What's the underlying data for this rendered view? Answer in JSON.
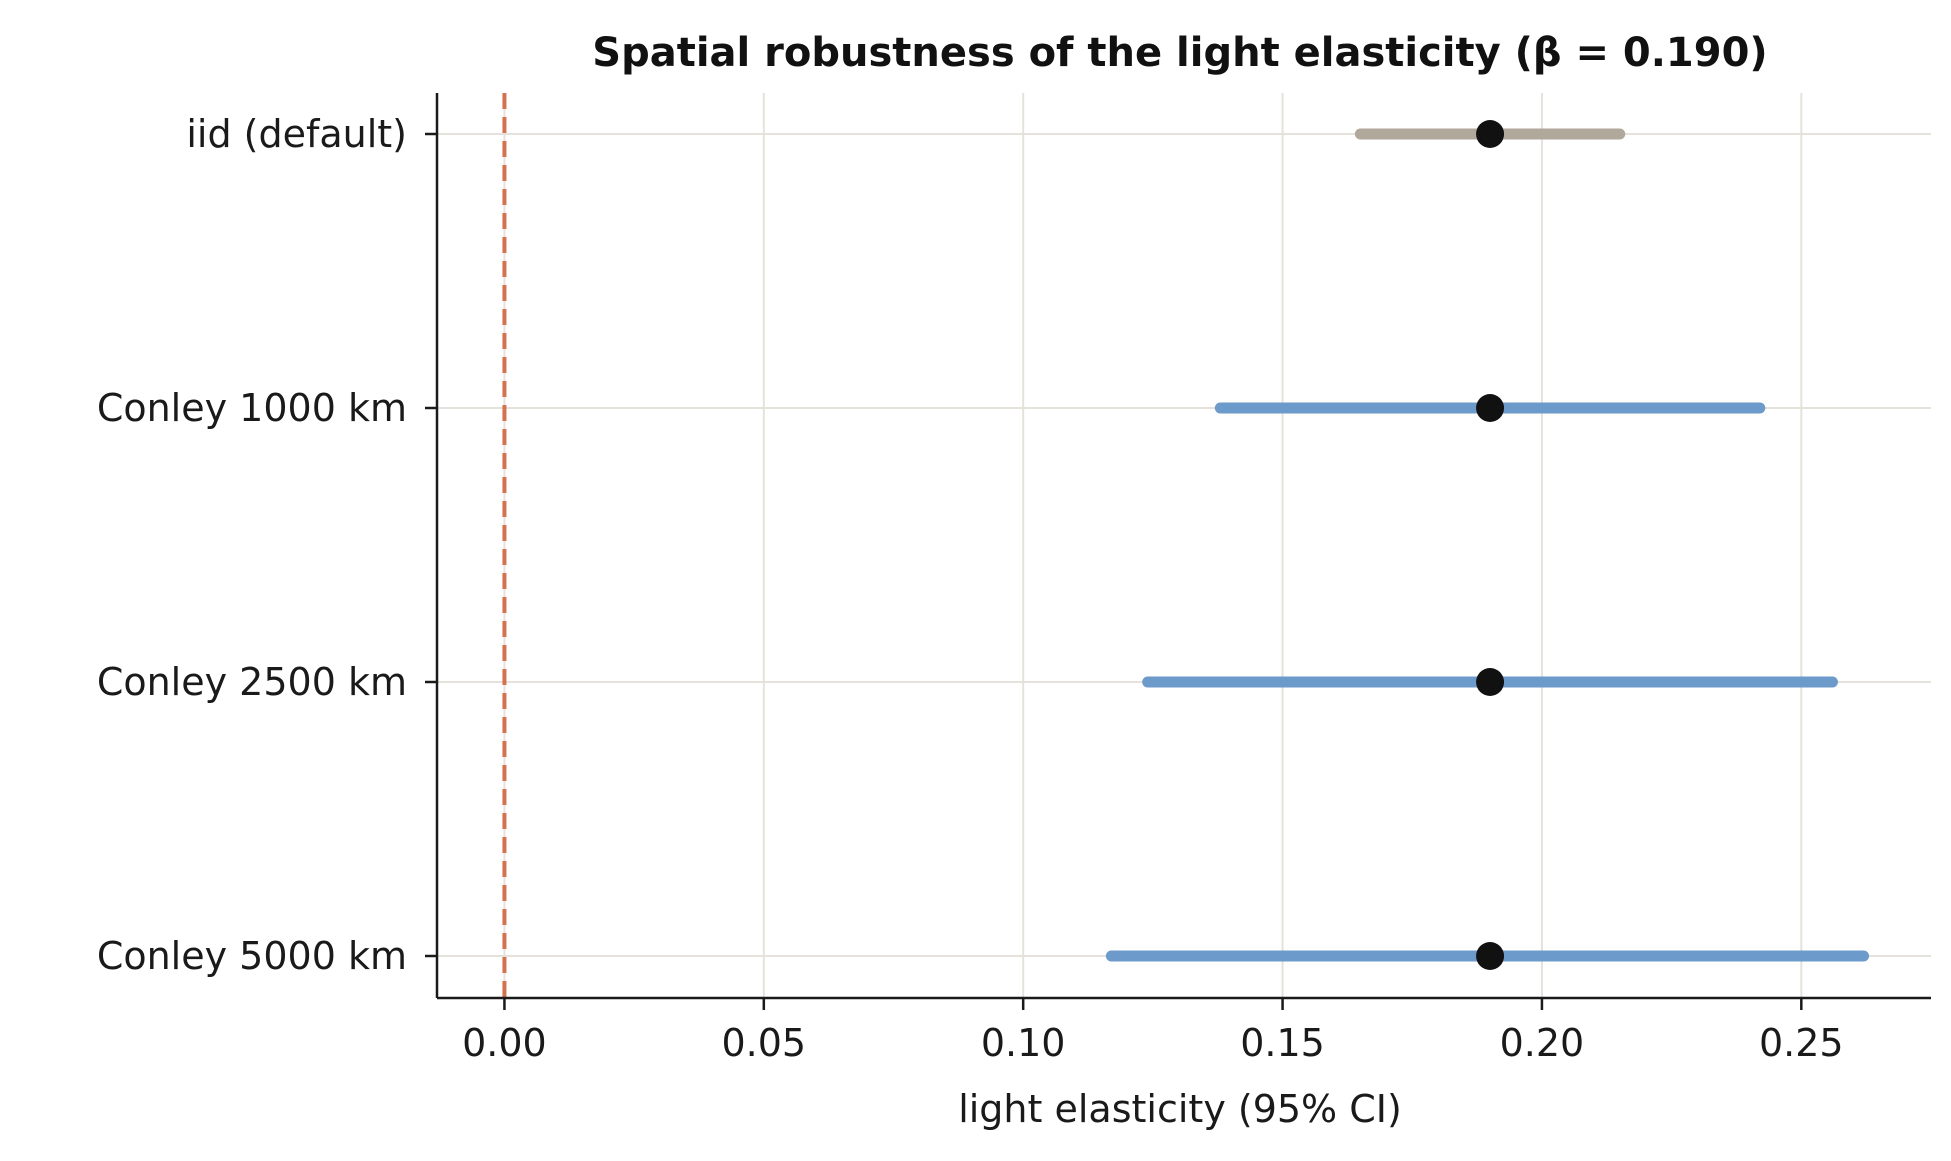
{
  "chart_data": {
    "type": "forest",
    "title": "Spatial robustness of the light elasticity (β = 0.190)",
    "xlabel": "light elasticity (95% CI)",
    "ylabel": "",
    "xlim": [
      -0.013,
      0.275
    ],
    "xticks": [
      0.0,
      0.05,
      0.1,
      0.15,
      0.2,
      0.25
    ],
    "xtick_labels": [
      "0.00",
      "0.05",
      "0.10",
      "0.15",
      "0.20",
      "0.25"
    ],
    "reference_line": {
      "x": 0.0,
      "style": "dashed",
      "color": "#d4714f"
    },
    "grid": true,
    "rows": [
      {
        "label": "iid (default)",
        "estimate": 0.19,
        "ci_low": 0.165,
        "ci_high": 0.215,
        "color": "#b0a89b"
      },
      {
        "label": "Conley 1000 km",
        "estimate": 0.19,
        "ci_low": 0.138,
        "ci_high": 0.242,
        "color": "#6c9acb"
      },
      {
        "label": "Conley 2500 km",
        "estimate": 0.19,
        "ci_low": 0.124,
        "ci_high": 0.256,
        "color": "#6c9acb"
      },
      {
        "label": "Conley 5000 km",
        "estimate": 0.19,
        "ci_low": 0.117,
        "ci_high": 0.262,
        "color": "#6c9acb"
      }
    ],
    "point_color": "#111111",
    "grid_color": "#e4e2da",
    "axis_color": "#1a1a1a"
  }
}
